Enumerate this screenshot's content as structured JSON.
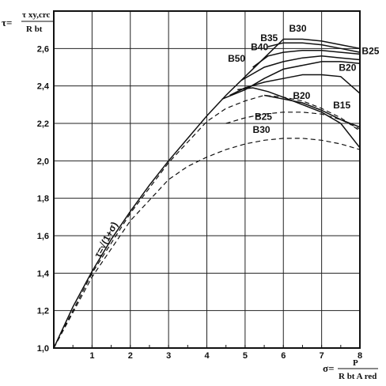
{
  "chart_data": {
    "type": "line",
    "ylabel": {
      "prefix": "τ=",
      "numerator": "τ xy,crc",
      "denominator": "R bt"
    },
    "xlabel": {
      "prefix": "σ=",
      "numerator": "P",
      "denominator": "R bt A red"
    },
    "xlim": [
      0,
      8
    ],
    "ylim": [
      1.0,
      2.8
    ],
    "xticks": [
      "1",
      "2",
      "3",
      "4",
      "5",
      "6",
      "7",
      "8"
    ],
    "yticks": [
      {
        "value": 1.0,
        "label": "1,0"
      },
      {
        "value": 1.2,
        "label": "1,2"
      },
      {
        "value": 1.4,
        "label": "1,4"
      },
      {
        "value": 1.6,
        "label": "1,6"
      },
      {
        "value": 1.8,
        "label": "1,8"
      },
      {
        "value": 2.0,
        "label": "2,0"
      },
      {
        "value": 2.2,
        "label": "2,2"
      },
      {
        "value": 2.4,
        "label": "2,4"
      },
      {
        "value": 2.6,
        "label": "2,6"
      }
    ],
    "grid": true,
    "series": [
      {
        "name": "τ=√(1+σ)",
        "style": "solid",
        "x": [
          0,
          0.5,
          1,
          1.5,
          2,
          2.5,
          3,
          3.5,
          4,
          4.5,
          5,
          5.5,
          6
        ],
        "y": [
          1.0,
          1.22,
          1.41,
          1.58,
          1.73,
          1.87,
          2.0,
          2.12,
          2.24,
          2.35,
          2.45,
          2.55,
          2.65
        ]
      },
      {
        "name": "B30",
        "style": "solid",
        "x": [
          6.0,
          6.5,
          7.0,
          7.5,
          8.0
        ],
        "y": [
          2.65,
          2.65,
          2.64,
          2.62,
          2.6
        ]
      },
      {
        "name": "B35",
        "style": "solid",
        "x": [
          5.6,
          6.0,
          6.5,
          7.0,
          7.5,
          8.0
        ],
        "y": [
          2.61,
          2.63,
          2.63,
          2.62,
          2.6,
          2.58
        ]
      },
      {
        "name": "B40",
        "style": "solid",
        "x": [
          5.2,
          5.6,
          6.0,
          6.5,
          7.0,
          7.5,
          8.0
        ],
        "y": [
          2.5,
          2.56,
          2.58,
          2.59,
          2.59,
          2.58,
          2.57
        ]
      },
      {
        "name": "B50",
        "style": "solid",
        "x": [
          4.9,
          5.5,
          6.0,
          6.5,
          7.0,
          7.5,
          8.0
        ],
        "y": [
          2.43,
          2.5,
          2.53,
          2.55,
          2.56,
          2.55,
          2.54
        ]
      },
      {
        "name": "B25",
        "style": "solid",
        "x": [
          4.4,
          5.0,
          5.5,
          6.0,
          6.5,
          7.0,
          7.5,
          8.0
        ],
        "y": [
          2.33,
          2.38,
          2.44,
          2.49,
          2.51,
          2.53,
          2.53,
          2.52
        ]
      },
      {
        "name": "B20",
        "style": "solid",
        "x": [
          4.6,
          5.0,
          5.5,
          6.0,
          6.5,
          7.0,
          7.5,
          8.0
        ],
        "y": [
          2.35,
          2.39,
          2.42,
          2.44,
          2.46,
          2.46,
          2.45,
          2.36
        ]
      },
      {
        "name": "B20",
        "style": "solid",
        "x": [
          4.8,
          5.2,
          5.6,
          6.0,
          6.5,
          7.0,
          7.5,
          8.0
        ],
        "y": [
          2.38,
          2.39,
          2.37,
          2.34,
          2.3,
          2.26,
          2.2,
          2.07
        ]
      },
      {
        "name": "B15",
        "style": "solid",
        "x": [
          5.5,
          6.0,
          6.5,
          7.0,
          7.5,
          8.0
        ],
        "y": [
          2.35,
          2.33,
          2.31,
          2.27,
          2.22,
          2.18
        ]
      },
      {
        "name": "B25",
        "style": "dashed",
        "x": [
          0,
          1,
          2,
          3,
          4,
          4.5,
          5,
          5.5,
          6,
          6.5,
          7,
          7.5,
          8
        ],
        "y": [
          1.0,
          1.4,
          1.72,
          1.99,
          2.21,
          2.28,
          2.32,
          2.35,
          2.34,
          2.32,
          2.28,
          2.23,
          2.16
        ]
      },
      {
        "name": "",
        "style": "dashed",
        "x": [
          4.5,
          5,
          5.5,
          6,
          6.5,
          7,
          7.5,
          8
        ],
        "y": [
          2.2,
          2.23,
          2.25,
          2.26,
          2.26,
          2.25,
          2.22,
          2.17
        ]
      },
      {
        "name": "B30",
        "style": "dashed",
        "x": [
          0,
          1,
          2,
          3,
          3.5,
          4,
          4.5,
          5,
          5.5,
          6,
          6.5,
          7,
          7.5,
          8
        ],
        "y": [
          1.0,
          1.38,
          1.68,
          1.9,
          1.97,
          2.02,
          2.06,
          2.09,
          2.11,
          2.12,
          2.12,
          2.11,
          2.09,
          2.06
        ]
      }
    ],
    "annotations": [
      {
        "text": "B30",
        "x": 6.15,
        "y": 2.69
      },
      {
        "text": "B35",
        "x": 5.4,
        "y": 2.64
      },
      {
        "text": "B40",
        "x": 5.15,
        "y": 2.59
      },
      {
        "text": "B50",
        "x": 4.55,
        "y": 2.53
      },
      {
        "text": "B25",
        "x": 8.05,
        "y": 2.57
      },
      {
        "text": "B20",
        "x": 7.45,
        "y": 2.48
      },
      {
        "text": "B20",
        "x": 6.25,
        "y": 2.33
      },
      {
        "text": "B15",
        "x": 7.3,
        "y": 2.28
      },
      {
        "text": "B25",
        "x": 5.25,
        "y": 2.22
      },
      {
        "text": "B30",
        "x": 5.2,
        "y": 2.15
      }
    ]
  }
}
